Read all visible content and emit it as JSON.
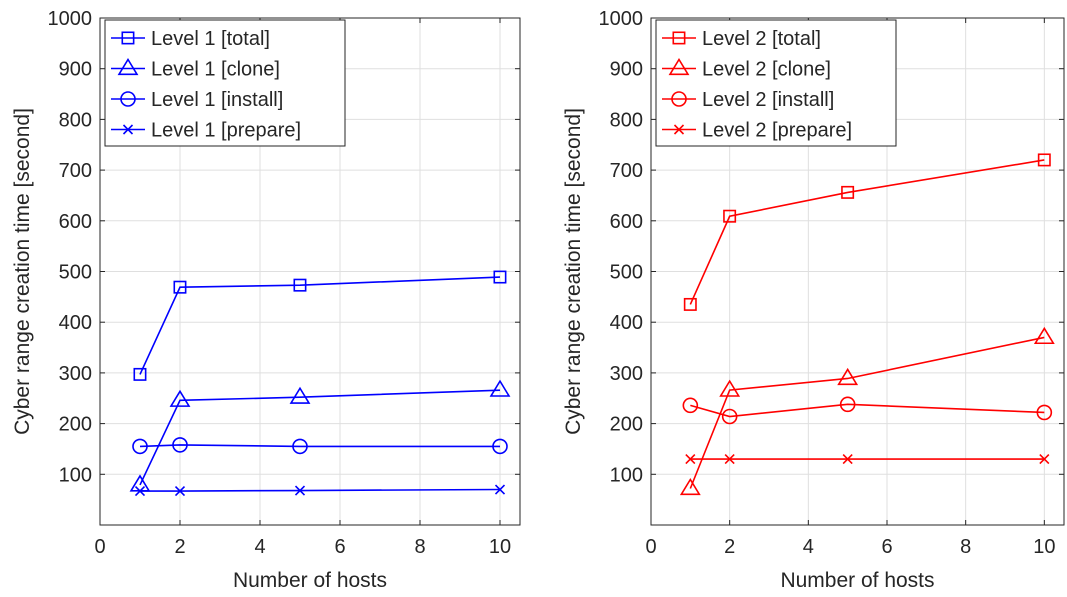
{
  "chart_data": [
    {
      "type": "line",
      "xlabel": "Number of hosts",
      "ylabel": "Cyber range creation time [second]",
      "xlim": [
        0,
        10.5
      ],
      "ylim": [
        0,
        1000
      ],
      "xticks": [
        0,
        2,
        4,
        6,
        8,
        10
      ],
      "yticks": [
        100,
        200,
        300,
        400,
        500,
        600,
        700,
        800,
        900,
        1000
      ],
      "grid": true,
      "legend": "top-left",
      "color": "#0000ff",
      "x": [
        1,
        2,
        5,
        10
      ],
      "series": [
        {
          "name": "Level 1 [total]",
          "marker": "square",
          "values": [
            297,
            469,
            473,
            489
          ]
        },
        {
          "name": "Level 1 [clone]",
          "marker": "triangle",
          "values": [
            79,
            246,
            252,
            266
          ]
        },
        {
          "name": "Level 1 [install]",
          "marker": "circle",
          "values": [
            155,
            158,
            155,
            155
          ]
        },
        {
          "name": "Level 1 [prepare]",
          "marker": "x",
          "values": [
            67,
            67,
            68,
            70
          ]
        }
      ]
    },
    {
      "type": "line",
      "xlabel": "Number of hosts",
      "ylabel": "Cyber range creation time [second]",
      "xlim": [
        0,
        10.5
      ],
      "ylim": [
        0,
        1000
      ],
      "xticks": [
        0,
        2,
        4,
        6,
        8,
        10
      ],
      "yticks": [
        100,
        200,
        300,
        400,
        500,
        600,
        700,
        800,
        900,
        1000
      ],
      "grid": true,
      "legend": "top-left",
      "color": "#ff0000",
      "x": [
        1,
        2,
        5,
        10
      ],
      "series": [
        {
          "name": "Level 2 [total]",
          "marker": "square",
          "values": [
            435,
            609,
            656,
            720
          ]
        },
        {
          "name": "Level 2 [clone]",
          "marker": "triangle",
          "values": [
            72,
            266,
            289,
            370
          ]
        },
        {
          "name": "Level 2 [install]",
          "marker": "circle",
          "values": [
            236,
            214,
            238,
            222
          ]
        },
        {
          "name": "Level 2 [prepare]",
          "marker": "x",
          "values": [
            130,
            130,
            130,
            130
          ]
        }
      ]
    }
  ]
}
